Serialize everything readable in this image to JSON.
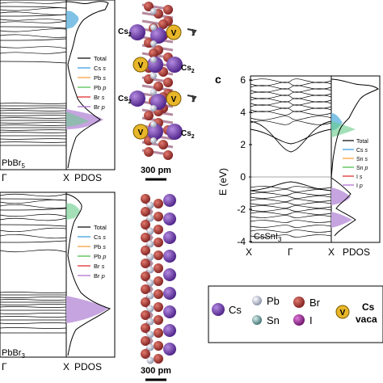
{
  "panel_a": {
    "material": "PbBr",
    "material_sub": "5",
    "x_ticks": [
      "Γ",
      "X"
    ],
    "pdos_label": "PDOS",
    "legend": [
      {
        "label": "Total",
        "orb": "",
        "color": "#000000"
      },
      {
        "label": "Cs ",
        "orb": "s",
        "color": "#3399dd"
      },
      {
        "label": "Pb ",
        "orb": "s",
        "color": "#ff9933"
      },
      {
        "label": "Pb ",
        "orb": "p",
        "color": "#44bb44"
      },
      {
        "label": "Br ",
        "orb": "s",
        "color": "#dd2222"
      },
      {
        "label": "Br ",
        "orb": "p",
        "color": "#aa66cc"
      }
    ]
  },
  "panel_b": {
    "material": "PbBr",
    "material_sub": "3",
    "x_ticks": [
      "Γ",
      "X"
    ],
    "pdos_label": "PDOS",
    "legend": [
      {
        "label": "Total",
        "orb": "",
        "color": "#000000"
      },
      {
        "label": "Cs ",
        "orb": "s",
        "color": "#3399dd"
      },
      {
        "label": "Pb ",
        "orb": "s",
        "color": "#ff9933"
      },
      {
        "label": "Pb ",
        "orb": "p",
        "color": "#44bb44"
      },
      {
        "label": "Br ",
        "orb": "s",
        "color": "#dd2222"
      },
      {
        "label": "Br ",
        "orb": "p",
        "color": "#aa66cc"
      }
    ]
  },
  "panel_c": {
    "letter": "c",
    "material": "CsSnI",
    "material_sub": "3",
    "ylabel": "E (eV)",
    "y_ticks": [
      "6",
      "4",
      "2",
      "0",
      "-2",
      "-4"
    ],
    "x_ticks": [
      "X",
      "Γ",
      "X"
    ],
    "pdos_label": "PDOS",
    "legend": [
      {
        "label": "Total",
        "orb": "",
        "color": "#000000"
      },
      {
        "label": "Cs ",
        "orb": "s",
        "color": "#3399dd"
      },
      {
        "label": "Sn ",
        "orb": "s",
        "color": "#ff9933"
      },
      {
        "label": "Sn ",
        "orb": "p",
        "color": "#44bb44"
      },
      {
        "label": "I ",
        "orb": "s",
        "color": "#dd2222"
      },
      {
        "label": "I ",
        "orb": "p",
        "color": "#aa66cc"
      }
    ]
  },
  "structure_top": {
    "labels": [
      "Cs",
      "Cs",
      "Cs",
      "Cs"
    ],
    "label_sub": "2",
    "vacancy_symbol": "V",
    "scale": "300 pm"
  },
  "structure_bottom": {
    "scale": "300 pm"
  },
  "atom_legend": {
    "items": [
      {
        "symbol": "Cs",
        "color": "#7a3fb8"
      },
      {
        "symbol": "Pb",
        "color": "#c0c8d8"
      },
      {
        "symbol": "Br",
        "color": "#b23a3a"
      },
      {
        "symbol": "Sn",
        "color": "#5f8f8f"
      },
      {
        "symbol": "I",
        "color": "#a0309c"
      }
    ],
    "vacancy_symbol": "V",
    "vacancy_text_1": "Cs",
    "vacancy_text_2": "vaca"
  }
}
